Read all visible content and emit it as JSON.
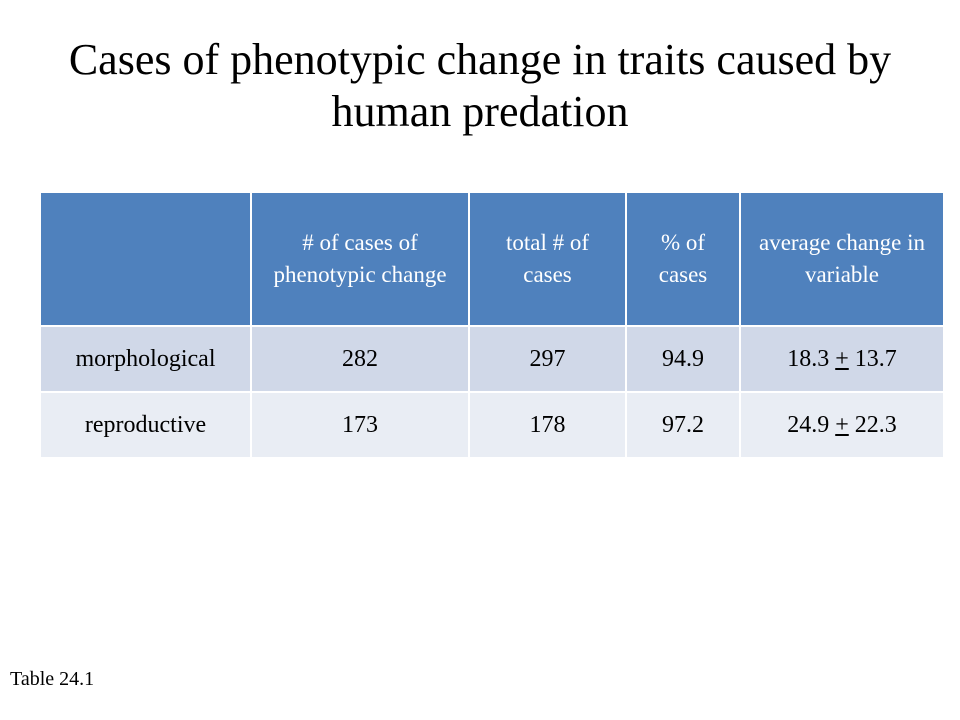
{
  "slide": {
    "title": "Cases of phenotypic change in traits caused by human predation",
    "caption": "Table 24.1"
  },
  "table": {
    "headers": [
      "",
      "# of cases of phenotypic change",
      "total # of cases",
      "% of cases",
      "average change in variable"
    ],
    "rows": [
      {
        "label": "morphological",
        "cases_changed": "282",
        "total_cases": "297",
        "percent": "94.9",
        "avg_change_mean": "18.3",
        "avg_change_pm": "+",
        "avg_change_sd": "13.7"
      },
      {
        "label": "reproductive",
        "cases_changed": "173",
        "total_cases": "178",
        "percent": "97.2",
        "avg_change_mean": "24.9",
        "avg_change_pm": "+",
        "avg_change_sd": "22.3"
      }
    ]
  },
  "colors": {
    "header_bg": "#4f81bd",
    "row_odd_bg": "#d0d8e8",
    "row_even_bg": "#e9edf4"
  }
}
